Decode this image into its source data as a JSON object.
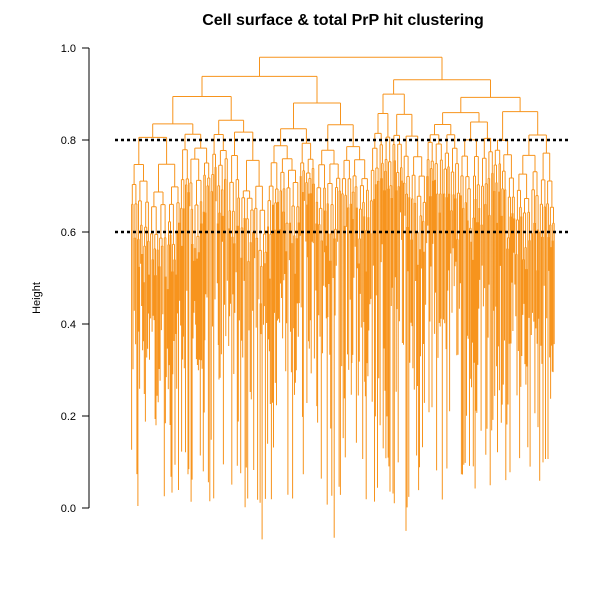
{
  "chart_data": {
    "type": "dendrogram",
    "title": "Cell surface & total PrP hit clustering",
    "ylabel": "Height",
    "xlabel": "",
    "ylim": [
      0.0,
      1.0
    ],
    "yticks": [
      0.0,
      0.2,
      0.4,
      0.6,
      0.8,
      1.0
    ],
    "ytick_labels": [
      "0.0",
      "0.2",
      "0.4",
      "0.6",
      "0.8",
      "1.0"
    ],
    "root_height": 0.98,
    "min_leaf_height": -0.07,
    "cut_lines": [
      0.8,
      0.6
    ],
    "colors": {
      "branch": "#F7941D",
      "cut_line": "#000000",
      "axis": "#000000"
    },
    "grid": false,
    "legend": "none"
  }
}
